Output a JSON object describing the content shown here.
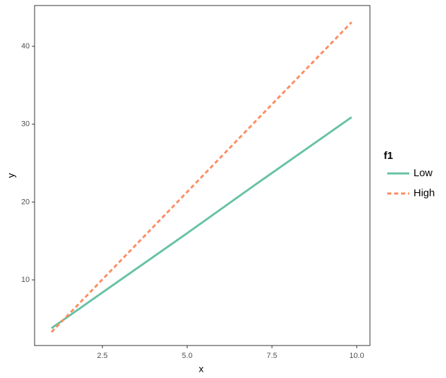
{
  "chart_data": {
    "type": "line",
    "x_label": "x",
    "y_label": "y",
    "x": [
      1,
      3,
      5,
      7,
      9.85
    ],
    "series": [
      {
        "name": "Low",
        "color": "#66c2a5",
        "dash": "solid",
        "values": [
          3.8,
          9.9,
          16.0,
          22.2,
          30.9
        ]
      },
      {
        "name": "High",
        "color": "#fc8d62",
        "dash": "dashed",
        "values": [
          3.3,
          12.3,
          21.3,
          30.3,
          43.1
        ]
      }
    ],
    "xlim": [
      0.5,
      10.39
    ],
    "ylim": [
      1.57,
      45.24
    ],
    "xticks": [
      {
        "value": 2.5,
        "label": "2.5"
      },
      {
        "value": 5,
        "label": "5.0"
      },
      {
        "value": 7.5,
        "label": "7.5"
      },
      {
        "value": 10,
        "label": "10.0"
      }
    ],
    "yticks": [
      10,
      20,
      30,
      40
    ],
    "grid": false,
    "legend_title": "f1",
    "legend_position": "right"
  }
}
